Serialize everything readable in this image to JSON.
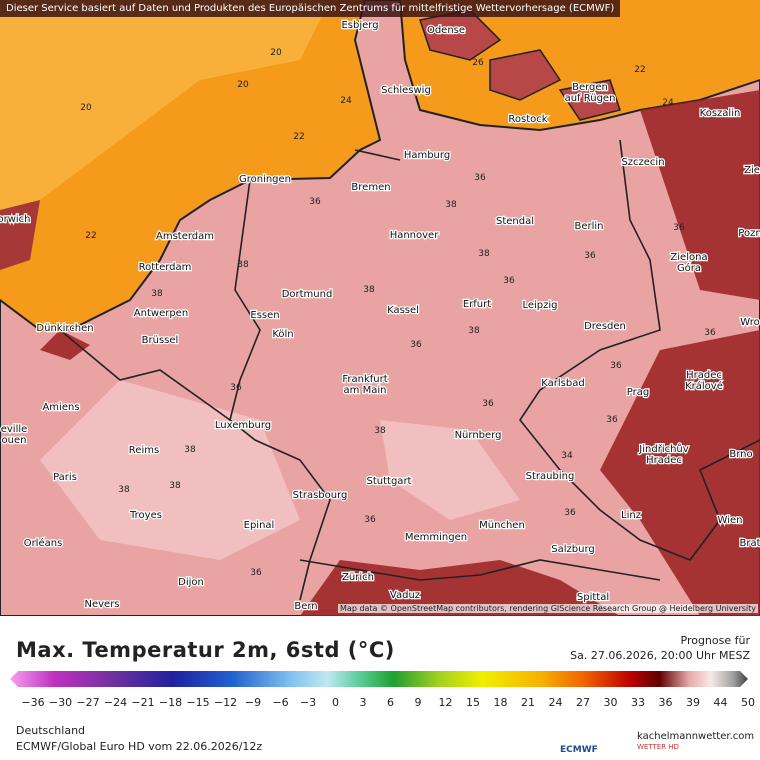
{
  "header": {
    "notice": "Dieser Service basiert auf Daten und Produkten des Europäischen Zentrums für mittelfristige Wettervorhersage (ECMWF)"
  },
  "map": {
    "attribution": "Map data © OpenStreetMap contributors, rendering GIScience Research Group @ Heidelberg University",
    "cities": [
      [
        "Esbjerg"
      ],
      [
        "Odense"
      ],
      [
        "Schleswig"
      ],
      [
        "Bergen",
        "auf Rügen"
      ],
      [
        "Koszalin"
      ],
      [
        "Rostock"
      ],
      [
        "Hamburg"
      ],
      [
        "Szczecin"
      ],
      [
        "Groningen"
      ],
      [
        "Bremen"
      ],
      [
        "orwich"
      ],
      [
        "Amsterdam"
      ],
      [
        "Hannover"
      ],
      [
        "Stendal"
      ],
      [
        "Berlin"
      ],
      [
        "Pozn"
      ],
      [
        "Zielona",
        "Góra"
      ],
      [
        "Rotterdam"
      ],
      [
        "Dortmund"
      ],
      [
        "Antwerpen"
      ],
      [
        "Essen"
      ],
      [
        "Kassel"
      ],
      [
        "Erfurt"
      ],
      [
        "Leipzig"
      ],
      [
        "Dresden"
      ],
      [
        "Dünkirchen"
      ],
      [
        "Brüssel"
      ],
      [
        "Köln"
      ],
      [
        "Wro"
      ],
      [
        "Karlsbad"
      ],
      [
        "Frankfurt",
        "am Main"
      ],
      [
        "Hradec",
        "Králové"
      ],
      [
        "Prag"
      ],
      [
        "Amiens"
      ],
      [
        "eville",
        "ouen"
      ],
      [
        "Luxemburg"
      ],
      [
        "Nürnberg"
      ],
      [
        "Jindřichův",
        "Hradec"
      ],
      [
        "Brno"
      ],
      [
        "Reims"
      ],
      [
        "Paris"
      ],
      [
        "Straubing"
      ],
      [
        "Stuttgart"
      ],
      [
        "Strasbourg"
      ],
      [
        "Troyes"
      ],
      [
        "Linz"
      ],
      [
        "Wien"
      ],
      [
        "Epinal"
      ],
      [
        "München"
      ],
      [
        "Memmingen"
      ],
      [
        "Brat"
      ],
      [
        "Orléans"
      ],
      [
        "Salzburg"
      ],
      [
        "Zürich"
      ],
      [
        "Dijon"
      ],
      [
        "Vaduz"
      ],
      [
        "Spittal"
      ],
      [
        "Nevers"
      ],
      [
        "Bern"
      ],
      [
        "Zie"
      ]
    ],
    "contour_labels": [
      20,
      20,
      20,
      22,
      22,
      22,
      24,
      24,
      26,
      36,
      38,
      36,
      38,
      38,
      38,
      38,
      36,
      36,
      36,
      36,
      38,
      36,
      38,
      36,
      38,
      36,
      38,
      38,
      36,
      36,
      36,
      36,
      34,
      36
    ]
  },
  "legend": {
    "title": "Max. Temperatur 2m, 6std (°C)",
    "forecast_label": "Prognose für",
    "forecast_time": "Sa. 27.06.2026, 20:00 Uhr MESZ",
    "ticks": [
      "−36",
      "−30",
      "−27",
      "−24",
      "−21",
      "−18",
      "−15",
      "−12",
      "−9",
      "−6",
      "−3",
      "0",
      "3",
      "6",
      "9",
      "12",
      "15",
      "18",
      "21",
      "24",
      "27",
      "30",
      "33",
      "36",
      "39",
      "44",
      "50"
    ]
  },
  "footer": {
    "region": "Deutschland",
    "model": "ECMWF/Global Euro HD vom  22.06.2026/12z",
    "ecmwf": "ECMWF",
    "brand": "kachelmannwetter.com",
    "brand_sub": "WETTER HD"
  }
}
